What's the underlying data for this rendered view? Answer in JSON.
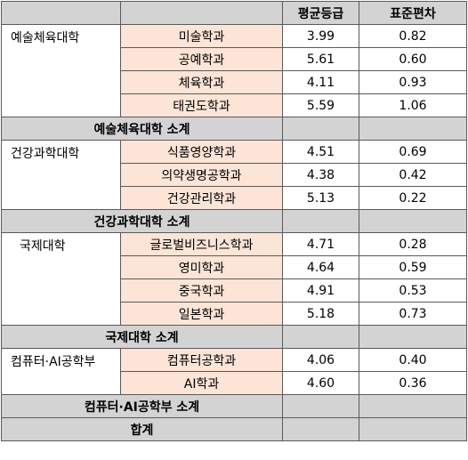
{
  "header": {
    "col_college": "",
    "col_dept": "",
    "col_avg": "평균등급",
    "col_std": "표준편차"
  },
  "groups": [
    {
      "college": "예술체육대학",
      "rows": [
        {
          "dept": "미술학과",
          "avg": "3.99",
          "std": "0.82"
        },
        {
          "dept": "공예학과",
          "avg": "5.61",
          "std": "0.60"
        },
        {
          "dept": "체육학과",
          "avg": "4.11",
          "std": "0.93"
        },
        {
          "dept": "태권도학과",
          "avg": "5.59",
          "std": "1.06"
        }
      ],
      "subtotal": "예술체육대학 소계"
    },
    {
      "college": "건강과학대학",
      "rows": [
        {
          "dept": "식품영양학과",
          "avg": "4.51",
          "std": "0.69"
        },
        {
          "dept": "의약생명공학과",
          "avg": "4.38",
          "std": "0.42"
        },
        {
          "dept": "건강관리학과",
          "avg": "5.13",
          "std": "0.22"
        }
      ],
      "subtotal": "건강과학대학 소계"
    },
    {
      "college": "국제대학",
      "rows": [
        {
          "dept": "글로벌비즈니스학과",
          "avg": "4.71",
          "std": "0.28"
        },
        {
          "dept": "영미학과",
          "avg": "4.64",
          "std": "0.59"
        },
        {
          "dept": "중국학과",
          "avg": "4.91",
          "std": "0.53"
        },
        {
          "dept": "일본학과",
          "avg": "5.18",
          "std": "0.73"
        }
      ],
      "subtotal": "국제대학 소계"
    },
    {
      "college": "컴퓨터·AI공학부",
      "rows": [
        {
          "dept": "컴퓨터공학과",
          "avg": "4.06",
          "std": "0.40"
        },
        {
          "dept": "AI학과",
          "avg": "4.60",
          "std": "0.36"
        }
      ],
      "subtotal": "컴퓨터·AI공학부 소계"
    }
  ],
  "total": {
    "label": "합계"
  }
}
